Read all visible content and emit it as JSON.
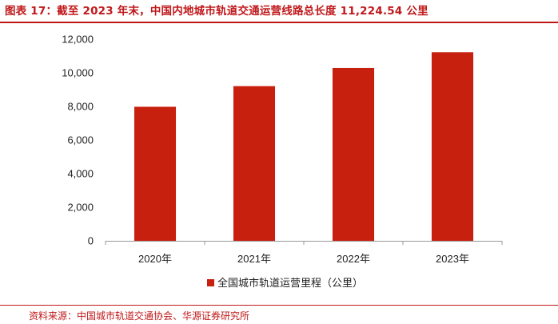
{
  "header": {
    "title": "图表 17：截至 2023 年末，中国内地城市轨道交通运营线路总长度 11,224.54 公里"
  },
  "footer": {
    "source": "资料来源：中国城市轨道交通协会、华源证券研究所"
  },
  "colors": {
    "bar": "#c8200f",
    "accent": "#c0181a",
    "axis": "#999999"
  },
  "chart_data": {
    "type": "bar",
    "title": "",
    "xlabel": "",
    "ylabel": "",
    "categories": [
      "2020年",
      "2021年",
      "2022年",
      "2023年"
    ],
    "series": [
      {
        "name": "全国城市轨道运营里程（公里）",
        "values": [
          7978,
          9206,
          10288,
          11224.54
        ]
      }
    ],
    "ylim": [
      0,
      12000
    ],
    "yticks": [
      0,
      2000,
      4000,
      6000,
      8000,
      10000,
      12000
    ],
    "ytick_labels": [
      "0",
      "2,000",
      "4,000",
      "6,000",
      "8,000",
      "10,000",
      "12,000"
    ],
    "grid": false,
    "legend": {
      "placement": "bottom-center",
      "label": "全国城市轨道运营里程（公里）"
    }
  }
}
